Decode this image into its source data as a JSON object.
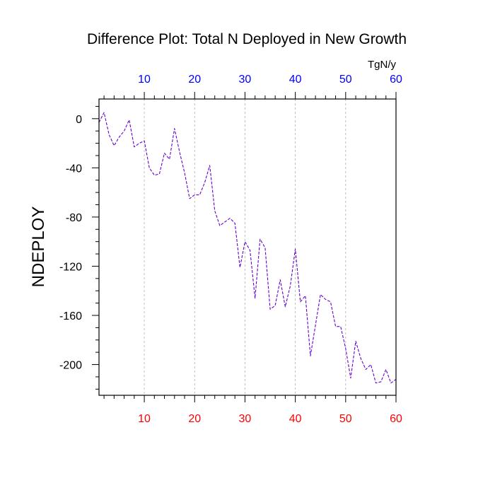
{
  "chart_data": {
    "type": "line",
    "title": "Difference Plot: Total N Deployed in New Growth",
    "ylabel": "NDEPLOY",
    "units": "TgN/y",
    "xlim": [
      1,
      60
    ],
    "ylim": [
      -225,
      16
    ],
    "x_ticks": [
      10,
      20,
      30,
      40,
      50,
      60
    ],
    "y_ticks": [
      0,
      -40,
      -80,
      -120,
      -160,
      -200
    ],
    "x_grid": true,
    "bottom_axis_color": "#ff0000",
    "top_axis_color": "#0000ff",
    "series": [
      {
        "color": "#6600cc",
        "dashed": true,
        "x": [
          1,
          2,
          3,
          4,
          5,
          6,
          7,
          8,
          9,
          10,
          11,
          12,
          13,
          14,
          15,
          16,
          17,
          18,
          19,
          20,
          21,
          22,
          23,
          24,
          25,
          26,
          27,
          28,
          29,
          30,
          31,
          32,
          33,
          34,
          35,
          36,
          37,
          38,
          39,
          40,
          41,
          42,
          43,
          44,
          45,
          46,
          47,
          48,
          49,
          50,
          51,
          52,
          53,
          54,
          55,
          56,
          57,
          58,
          59,
          60
        ],
        "values": [
          -3,
          5,
          -13,
          -22,
          -15,
          -10,
          -1,
          -23,
          -20,
          -18,
          -40,
          -46,
          -45,
          -28,
          -33,
          -8,
          -27,
          -44,
          -65,
          -62,
          -62,
          -52,
          -38,
          -75,
          -87,
          -84,
          -81,
          -85,
          -121,
          -100,
          -107,
          -146,
          -98,
          -105,
          -155,
          -152,
          -131,
          -153,
          -136,
          -106,
          -149,
          -144,
          -193,
          -168,
          -143,
          -147,
          -149,
          -169,
          -169,
          -187,
          -211,
          -181,
          -195,
          -204,
          -200,
          -215,
          -214,
          -204,
          -215,
          -212
        ]
      }
    ]
  }
}
